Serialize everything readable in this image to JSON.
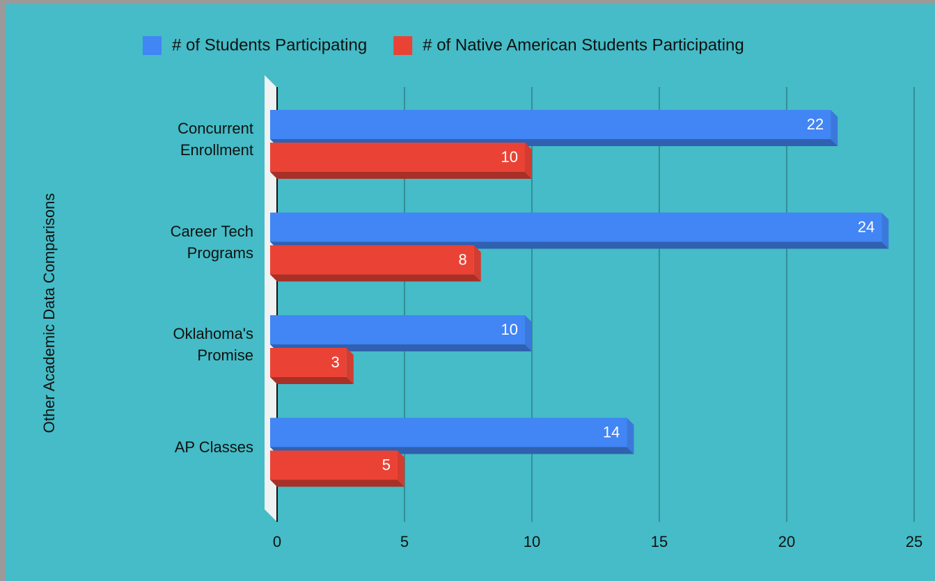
{
  "chart_data": {
    "type": "bar",
    "orientation": "horizontal",
    "y_axis_label": "Other Academic Data Comparisons",
    "categories": [
      "Concurrent Enrollment",
      "Career Tech Programs",
      "Oklahoma's Promise",
      "AP Classes"
    ],
    "series": [
      {
        "name": "# of Students Participating",
        "color": "#4285f4",
        "values": [
          22,
          24,
          10,
          14
        ]
      },
      {
        "name": "# of Native American Students Participating",
        "color": "#ea4335",
        "values": [
          10,
          8,
          3,
          5
        ]
      }
    ],
    "xlim": [
      0,
      25
    ],
    "xticks": [
      0,
      5,
      10,
      15,
      20,
      25
    ],
    "grid": true,
    "legend": "top"
  }
}
